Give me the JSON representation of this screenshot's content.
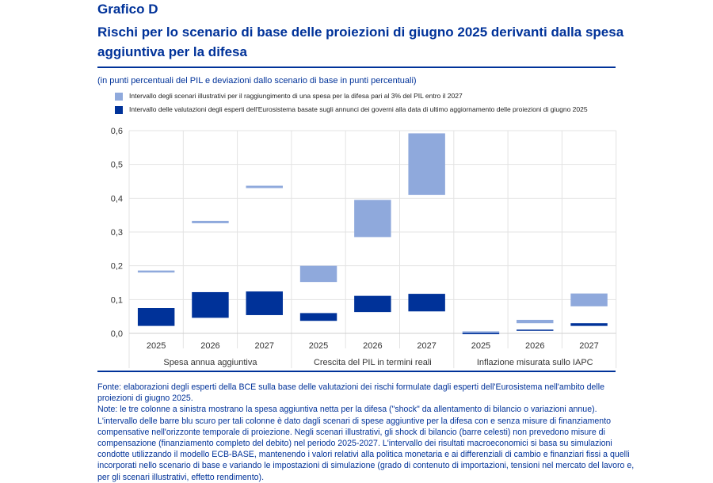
{
  "header": {
    "label": "Grafico D",
    "title": "Rischi per lo scenario di base delle proiezioni di giugno 2025 derivanti dalla spesa aggiuntiva per la difesa",
    "subtitle": "(in punti percentuali del PIL e deviazioni dallo scenario di base in punti percentuali)"
  },
  "chart_data": {
    "type": "bar",
    "title": "Rischi per lo scenario di base delle proiezioni di giugno 2025 derivanti dalla spesa aggiuntiva per la difesa",
    "ylim": [
      0,
      0.6
    ],
    "yticks": [
      "0,0",
      "0,1",
      "0,2",
      "0,3",
      "0,4",
      "0,5",
      "0,6"
    ],
    "groups": [
      "Spesa annua aggiuntiva",
      "Crescita del PIL in termini reali",
      "Inflazione misurata sullo IAPC"
    ],
    "categories": [
      "2025",
      "2026",
      "2027",
      "2025",
      "2026",
      "2027",
      "2025",
      "2026",
      "2027"
    ],
    "legend_position": "top",
    "grid": true,
    "series": [
      {
        "name": "Intervallo degli scenari illustrativi per il raggiungimento di una spesa per la difesa pari al 3% del PIL entro il 2027",
        "color": "#8fa9dc",
        "ranges": [
          [
            0.18,
            0.186
          ],
          [
            0.326,
            0.333
          ],
          [
            0.43,
            0.437
          ],
          [
            0.152,
            0.2
          ],
          [
            0.285,
            0.395
          ],
          [
            0.41,
            0.592
          ],
          [
            0.0,
            0.006
          ],
          [
            0.03,
            0.04
          ],
          [
            0.08,
            0.118
          ]
        ]
      },
      {
        "name": "Intervallo delle valutazioni degli esperti dell'Eurosistema basate sugli annunci dei governi alla data di ultimo aggiornamento delle proiezioni di giugno 2025",
        "color": "#003299",
        "ranges": [
          [
            0.022,
            0.075
          ],
          [
            0.046,
            0.122
          ],
          [
            0.054,
            0.124
          ],
          [
            0.037,
            0.06
          ],
          [
            0.063,
            0.111
          ],
          [
            0.065,
            0.117
          ],
          [
            0.0,
            0.001
          ],
          [
            0.009,
            0.011
          ],
          [
            0.022,
            0.03
          ]
        ]
      }
    ]
  },
  "notes": {
    "source": "Fonte: elaborazioni degli esperti della BCE sulla base delle valutazioni dei rischi formulate dagli esperti dell'Eurosistema nell'ambito delle proiezioni di giugno 2025.",
    "note": "Note: le tre colonne a sinistra mostrano la spesa aggiuntiva netta per la difesa (\"shock\" da allentamento di bilancio o variazioni annue). L'intervallo delle barre blu scuro per tali colonne è dato dagli scenari di spese aggiuntive per la difesa con e senza misure di finanziamento compensative nell'orizzonte temporale di proiezione. Negli scenari illustrativi, gli shock di bilancio (barre celesti) non prevedono misure di compensazione (finanziamento completo del debito) nel periodo 2025-2027. L'intervallo dei risultati macroeconomici si basa su simulazioni condotte utilizzando il modello ECB-BASE, mantenendo i valori relativi alla politica monetaria e ai differenziali di cambio e finanziari fissi a quelli incorporati nello scenario di base e variando le impostazioni di simulazione (grado di contenuto di importazioni, tensioni nel mercato del lavoro e, per gli scenari illustrativi, effetto rendimento)."
  }
}
